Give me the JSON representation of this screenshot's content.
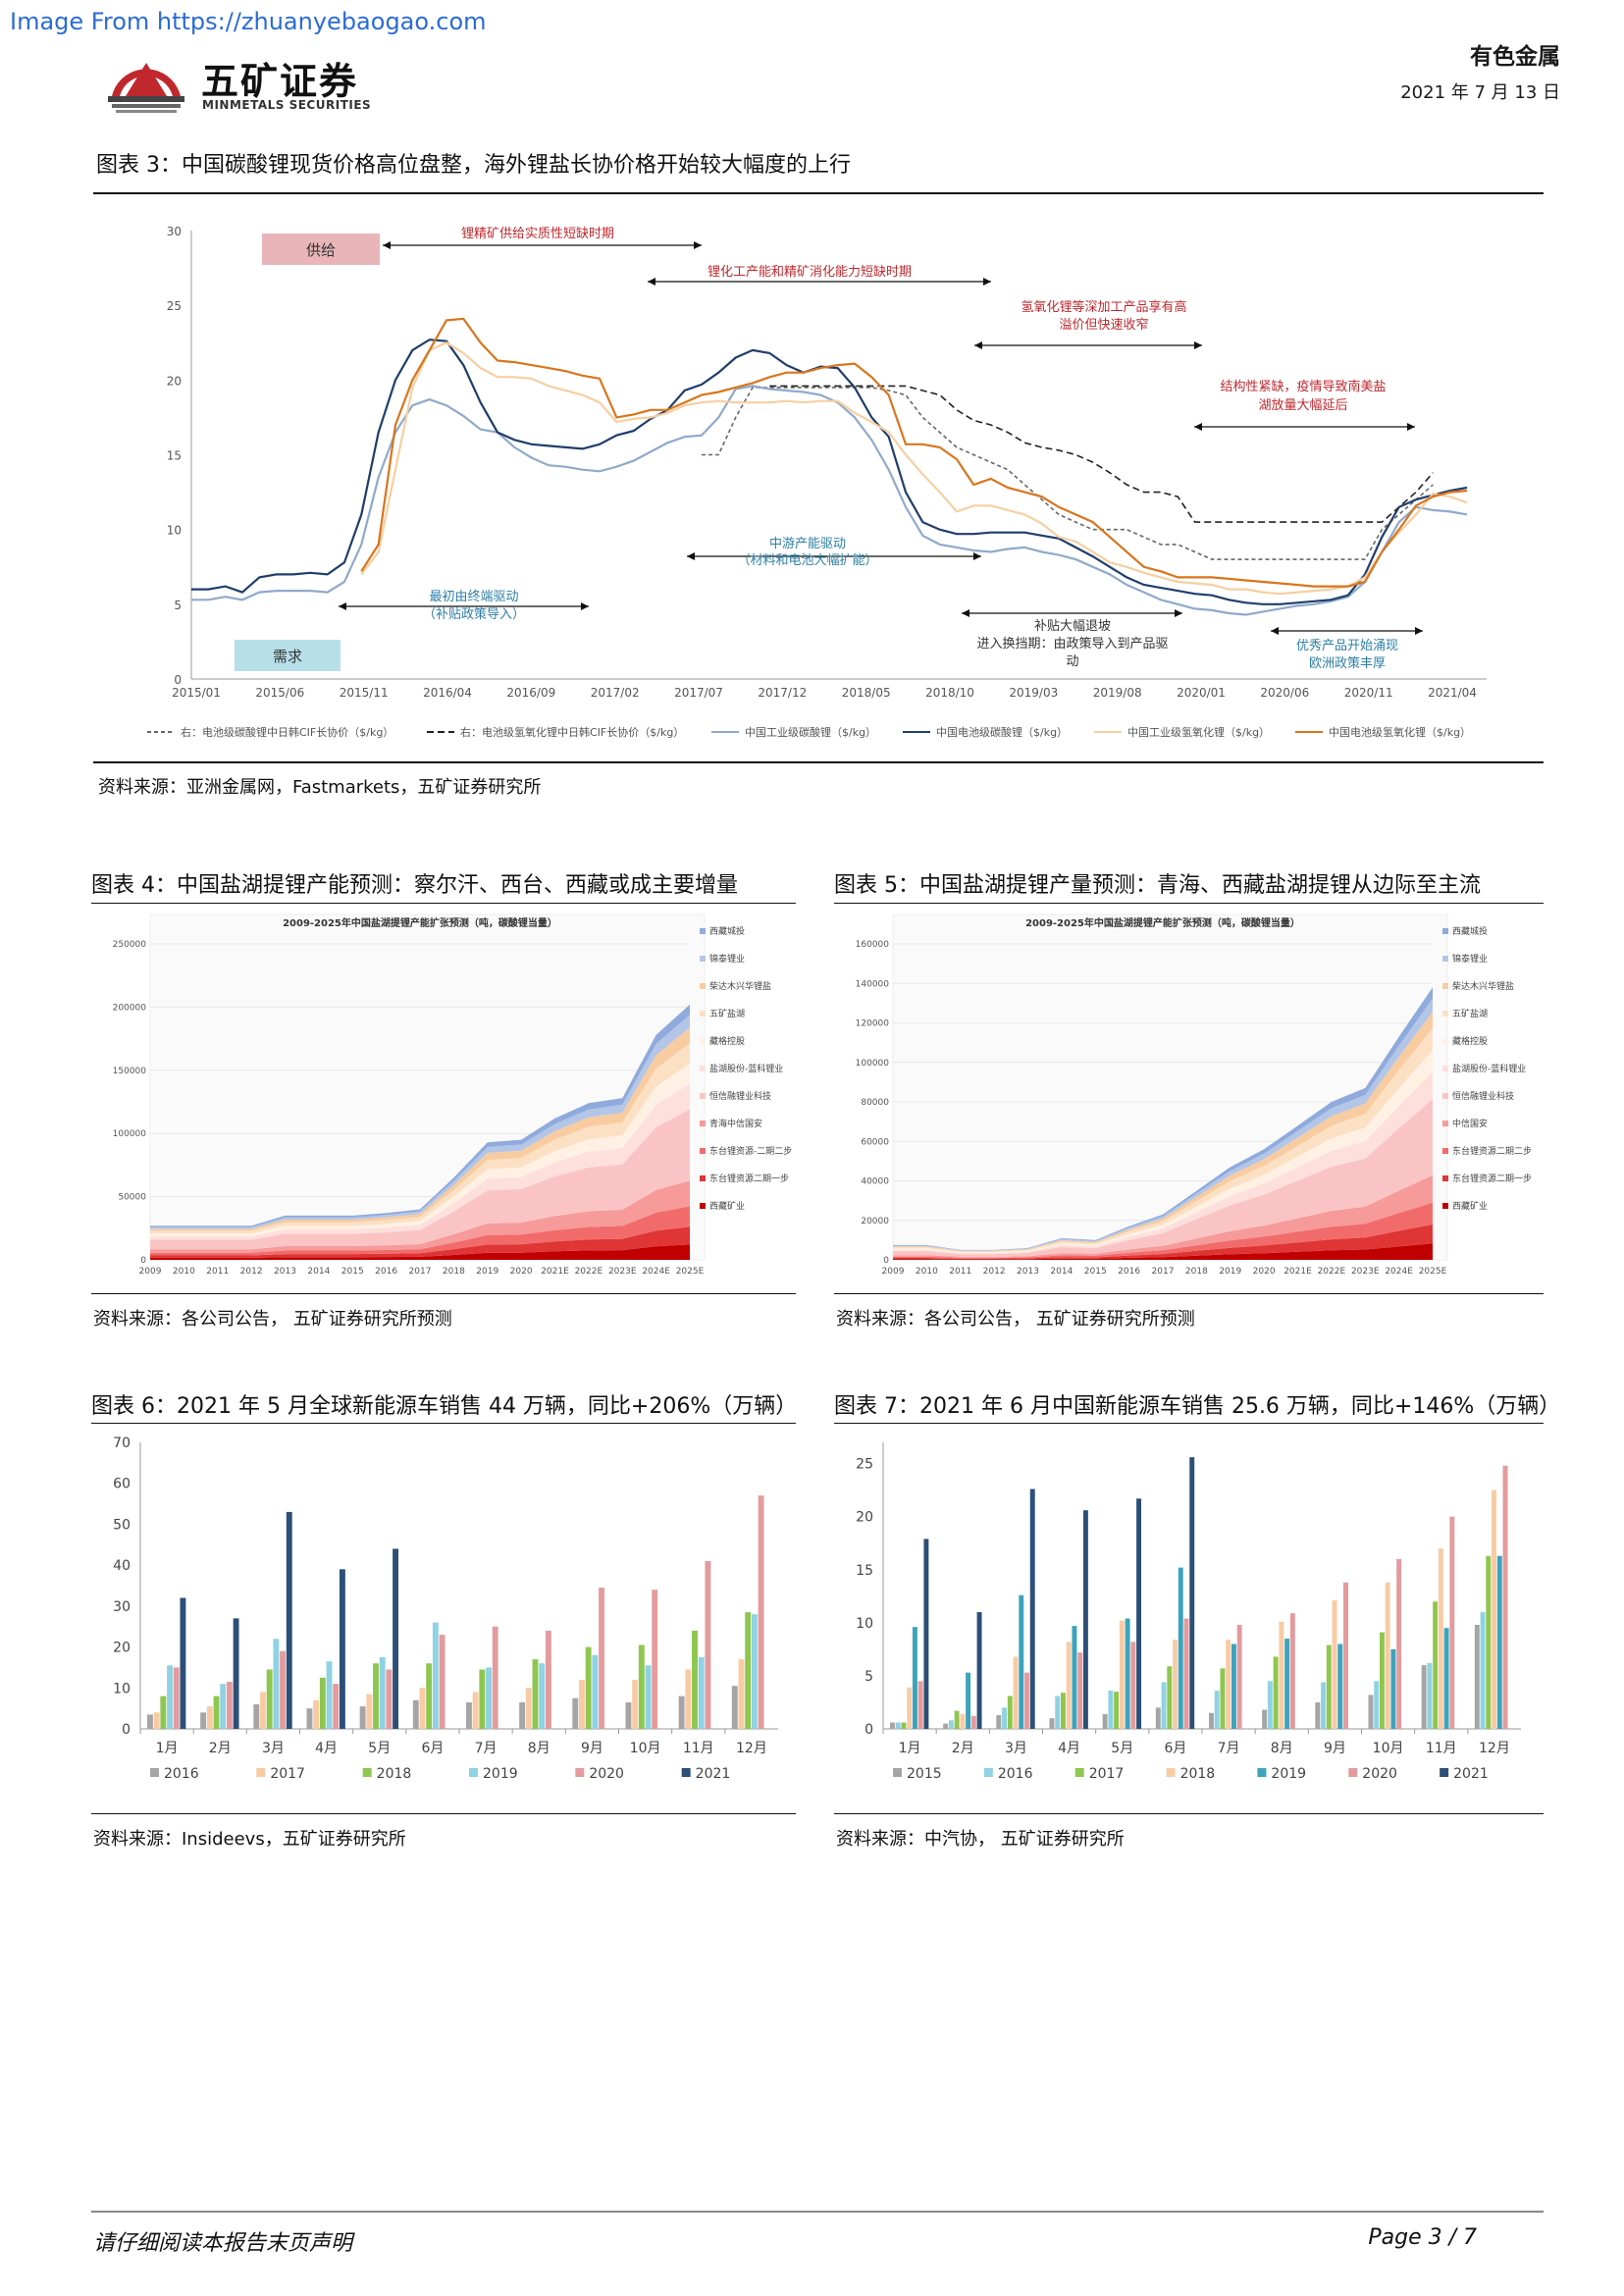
{
  "watermark": "Image From https://zhuanyebaogao.com",
  "header": {
    "brand_cn": "五矿证券",
    "brand_en": "MINMETALS SECURITIES",
    "logo_ring_text": "MINMETALS",
    "sector": "有色金属",
    "date": "2021 年 7 月 13 日"
  },
  "fig3": {
    "title": "图表 3：中国碳酸锂现货价格高位盘整，海外锂盐长协价格开始较大幅度的上行",
    "source": "资料来源：亚洲金属网，Fastmarkets，五矿证券研究所",
    "chart_data": {
      "type": "line",
      "yticks": [
        "0",
        "5",
        "10",
        "15",
        "20",
        "25",
        "30"
      ],
      "ylim": [
        0,
        30
      ],
      "xticks": [
        "2015/01",
        "2015/06",
        "2015/11",
        "2016/04",
        "2016/09",
        "2017/02",
        "2017/07",
        "2017/12",
        "2018/05",
        "2018/10",
        "2019/03",
        "2019/08",
        "2020/01",
        "2020/06",
        "2020/11",
        "2021/04"
      ],
      "annotations": {
        "supply": "供给",
        "demand": "需求",
        "a1": "锂精矿供给实质性短缺时期",
        "a2": "锂化工产能和精矿消化能力短缺时期",
        "a3_1": "氢氧化锂等深加工产品享有高",
        "a3_2": "溢价但快速收窄",
        "a4_1": "结构性紧缺，疫情导致南美盐",
        "a4_2": "湖放量大幅延后",
        "b1_1": "最初由终端驱动",
        "b1_2": "（补贴政策导入）",
        "b2_1": "中游产能驱动",
        "b2_2": "（材料和电池大幅扩能）",
        "b3_1": "补贴大幅退坡",
        "b3_2": "进入换挡期：由政策导入到产品驱",
        "b3_3": "动",
        "b4_1": "优秀产品开始涌现",
        "b4_2": "欧洲政策丰厚"
      },
      "series": [
        {
          "name": "右：电池级碳酸锂中日韩CIF长协价（$/kg）",
          "color": "#666666",
          "dash": "4,3",
          "values": [
            null,
            null,
            null,
            null,
            null,
            null,
            null,
            null,
            null,
            null,
            null,
            null,
            null,
            null,
            null,
            null,
            null,
            null,
            null,
            null,
            null,
            null,
            null,
            null,
            null,
            null,
            null,
            null,
            null,
            null,
            15,
            15,
            17.5,
            19.5,
            19.5,
            19.5,
            19.5,
            19.5,
            19.5,
            19.5,
            19.5,
            19.3,
            19,
            17.5,
            16.5,
            15.5,
            15,
            14.5,
            14,
            13,
            12,
            11,
            10.5,
            10,
            10,
            10,
            9.5,
            9,
            9,
            8.5,
            8,
            8,
            8,
            8,
            8,
            8,
            8,
            8,
            8,
            8,
            10,
            11,
            12,
            13
          ]
        },
        {
          "name": "右：电池级氢氧化锂中日韩CIF长协价（$/kg）",
          "color": "#222222",
          "dash": "7,4",
          "values": [
            null,
            null,
            null,
            null,
            null,
            null,
            null,
            null,
            null,
            null,
            null,
            null,
            null,
            null,
            null,
            null,
            null,
            null,
            null,
            null,
            null,
            null,
            null,
            null,
            null,
            null,
            null,
            null,
            null,
            null,
            null,
            null,
            null,
            null,
            19.6,
            19.6,
            19.6,
            19.6,
            19.6,
            19.6,
            19.6,
            19.6,
            19.6,
            19.3,
            19,
            18,
            17.3,
            17,
            16.5,
            15.8,
            15.5,
            15.3,
            15,
            14.5,
            13.8,
            13,
            12.5,
            12.5,
            12.2,
            10.5,
            10.5,
            10.5,
            10.5,
            10.5,
            10.5,
            10.5,
            10.5,
            10.5,
            10.5,
            10.5,
            10.5,
            11.5,
            12.5,
            13.8
          ]
        },
        {
          "name": "中国工业级碳酸锂（$/kg）",
          "color": "#8eaacb",
          "dash": "",
          "values": [
            5.3,
            5.3,
            5.5,
            5.3,
            5.8,
            5.9,
            5.9,
            5.9,
            5.8,
            6.5,
            9,
            13.5,
            16.5,
            18.3,
            18.7,
            18.3,
            17.6,
            16.7,
            16.5,
            15.5,
            14.8,
            14.3,
            14.2,
            14.0,
            13.9,
            14.2,
            14.6,
            15.2,
            15.8,
            16.2,
            16.3,
            17.5,
            19.4,
            19.6,
            19.4,
            19.3,
            19.2,
            19.0,
            18.5,
            17.5,
            16,
            14,
            11.5,
            9.6,
            9.0,
            8.8,
            8.6,
            8.5,
            8.7,
            8.8,
            8.5,
            8.3,
            8.0,
            7.5,
            7.0,
            6.3,
            5.8,
            5.3,
            5.0,
            4.7,
            4.6,
            4.4,
            4.3,
            4.5,
            4.7,
            4.9,
            5.0,
            5.2,
            5.5,
            6.5,
            8.5,
            10.5,
            11.5,
            11.3,
            11.2,
            11.0
          ]
        },
        {
          "name": "中国电池级碳酸锂（$/kg）",
          "color": "#1f3e6b",
          "dash": "",
          "values": [
            6.0,
            6.0,
            6.2,
            5.8,
            6.8,
            7.0,
            7.0,
            7.1,
            7.0,
            7.8,
            11,
            16.5,
            20,
            22,
            22.7,
            22.6,
            21,
            18.5,
            16.5,
            16,
            15.7,
            15.6,
            15.5,
            15.4,
            15.7,
            16.3,
            16.6,
            17.4,
            18,
            19.3,
            19.7,
            20.5,
            21.5,
            22.0,
            21.8,
            21.0,
            20.5,
            20.9,
            20.8,
            19.5,
            17.5,
            16.2,
            12.5,
            10.5,
            10.0,
            9.7,
            9.7,
            9.8,
            9.8,
            9.8,
            9.6,
            9.4,
            8.8,
            8.2,
            7.5,
            6.8,
            6.3,
            6.1,
            5.9,
            5.7,
            5.6,
            5.3,
            5.1,
            5.0,
            5.0,
            5.1,
            5.2,
            5.3,
            5.6,
            7.0,
            9.5,
            11.5,
            12.0,
            12.3,
            12.6,
            12.8
          ]
        },
        {
          "name": "中国工业级氢氧化锂（$/kg）",
          "color": "#f6cfa2",
          "dash": "",
          "values": [
            null,
            null,
            null,
            null,
            null,
            null,
            null,
            null,
            null,
            null,
            7,
            8.5,
            14,
            19.5,
            22,
            22.5,
            21.8,
            20.8,
            20.2,
            20.2,
            20.1,
            19.6,
            19.3,
            19.0,
            18.5,
            17.2,
            17.4,
            17.5,
            17.8,
            18.3,
            18.5,
            18.6,
            18.5,
            18.5,
            18.5,
            18.6,
            18.5,
            18.6,
            18.6,
            17.8,
            17.2,
            16.5,
            15,
            13.7,
            12.5,
            11.2,
            11.6,
            11.6,
            11.3,
            11.0,
            10.4,
            9.5,
            9.2,
            8.5,
            7.8,
            7.5,
            7.1,
            6.8,
            6.5,
            6.4,
            6.3,
            6.0,
            6.0,
            5.8,
            5.7,
            5.8,
            5.9,
            6.0,
            6.2,
            6.8,
            8.5,
            9.8,
            11.0,
            12.4,
            12.2,
            11.8
          ]
        },
        {
          "name": "中国电池级氢氧化锂（$/kg）",
          "color": "#d9751c",
          "dash": "",
          "values": [
            null,
            null,
            null,
            null,
            null,
            null,
            null,
            null,
            null,
            null,
            7.2,
            9,
            17,
            20,
            22,
            24.0,
            24.1,
            22.5,
            21.3,
            21.2,
            21.0,
            20.8,
            20.6,
            20.3,
            20.1,
            17.5,
            17.7,
            18.0,
            18.0,
            18.5,
            19.0,
            19.2,
            19.5,
            19.8,
            20.2,
            20.5,
            20.5,
            20.8,
            21.0,
            21.1,
            20.2,
            19.0,
            15.7,
            15.7,
            15.5,
            14.7,
            13.0,
            13.4,
            12.8,
            12.5,
            12.2,
            11.5,
            11.0,
            10.5,
            9.5,
            8.5,
            7.5,
            7.2,
            6.8,
            6.8,
            6.8,
            6.7,
            6.6,
            6.5,
            6.4,
            6.3,
            6.2,
            6.2,
            6.2,
            6.5,
            8.5,
            10,
            11.6,
            12.2,
            12.5,
            12.6
          ]
        }
      ]
    }
  },
  "fig4": {
    "title": "图表 4：中国盐湖提锂产能预测：察尔汗、西台、西藏或成主要增量",
    "source": "资料来源：各公司公告，  五矿证券研究所预测",
    "chart_data": {
      "type": "area",
      "title": "2009-2025年中国盐湖提锂产能扩张预测（吨，碳酸锂当量）",
      "categories": [
        "2009",
        "2010",
        "2011",
        "2012",
        "2013",
        "2014",
        "2015",
        "2016",
        "2017",
        "2018",
        "2019",
        "2020",
        "2021E",
        "2022E",
        "2023E",
        "2024E",
        "2025E"
      ],
      "ylim": [
        0,
        250000
      ],
      "yticks": [
        "0",
        "50000",
        "100000",
        "150000",
        "200000",
        "250000"
      ],
      "legend": [
        "西藏城投",
        "锦泰锂业",
        "柴达木兴华锂盐",
        "五矿盐湖",
        "藏格控股",
        "盐湖股份-蓝科锂业",
        "恒信融锂业科技",
        "青海中信国安",
        "东台锂资源-二期二步",
        "东台锂资源二期一步",
        "西藏矿业"
      ],
      "totals": [
        27000,
        27000,
        27000,
        27000,
        35000,
        35000,
        35000,
        37000,
        40000,
        65000,
        93000,
        95000,
        112000,
        124000,
        128000,
        178000,
        202000
      ]
    }
  },
  "fig5": {
    "title": "图表 5：中国盐湖提锂产量预测：青海、西藏盐湖提锂从边际至主流",
    "source": "资料来源：各公司公告，  五矿证券研究所预测",
    "chart_data": {
      "type": "area",
      "title": "2009-2025年中国盐湖提锂产能扩张预测（吨，碳酸锂当量）",
      "categories": [
        "2009",
        "2010",
        "2011",
        "2012",
        "2013",
        "2014",
        "2015",
        "2016",
        "2017",
        "2018",
        "2019",
        "2020",
        "2021E",
        "2022E",
        "2023E",
        "2024E",
        "2025E"
      ],
      "ylim": [
        0,
        160000
      ],
      "yticks": [
        "0",
        "20000",
        "40000",
        "60000",
        "80000",
        "100000",
        "120000",
        "140000",
        "160000"
      ],
      "legend": [
        "西藏城投",
        "锦泰锂业",
        "柴达木兴华锂盐",
        "五矿盐湖",
        "藏格控股",
        "盐湖股份-蓝科锂业",
        "恒信融锂业科技",
        "中信国安",
        "东台锂资源二期二步",
        "东台锂资源二期一步",
        "西藏矿业"
      ],
      "totals": [
        7500,
        7500,
        5000,
        5000,
        6000,
        11000,
        10000,
        17000,
        23000,
        35000,
        47000,
        56000,
        68000,
        80000,
        87000,
        113000,
        138000
      ]
    }
  },
  "fig6": {
    "title": "图表 6：2021 年 5 月全球新能源车销售 44 万辆，同比+206%（万辆）",
    "source": "资料来源：Insideevs，五矿证券研究所",
    "chart_data": {
      "type": "bar",
      "categories": [
        "1月",
        "2月",
        "3月",
        "4月",
        "5月",
        "6月",
        "7月",
        "8月",
        "9月",
        "10月",
        "11月",
        "12月"
      ],
      "ylim": [
        0,
        70
      ],
      "yticks": [
        "0",
        "10",
        "20",
        "30",
        "40",
        "50",
        "60",
        "70"
      ],
      "series": [
        {
          "name": "2016",
          "color": "#a5a5a5",
          "values": [
            3.5,
            4,
            6,
            5,
            5.5,
            7,
            6.5,
            6.5,
            7.5,
            6.5,
            8,
            10.5
          ]
        },
        {
          "name": "2017",
          "color": "#f8cba5",
          "values": [
            4,
            5.5,
            9,
            7,
            8.5,
            10,
            9,
            10,
            12,
            12,
            14.5,
            17
          ]
        },
        {
          "name": "2018",
          "color": "#8fc64f",
          "values": [
            8,
            8,
            14.5,
            12.5,
            16,
            16,
            14.5,
            17,
            20,
            20.5,
            24,
            28.5
          ]
        },
        {
          "name": "2019",
          "color": "#8fd2e4",
          "values": [
            15.5,
            11,
            22,
            16.5,
            17.5,
            26,
            15,
            16,
            18,
            15.5,
            17.5,
            28
          ]
        },
        {
          "name": "2020",
          "color": "#e39b9d",
          "values": [
            15,
            11.5,
            19,
            11,
            14.5,
            23,
            25,
            24,
            34.5,
            34,
            41,
            57
          ]
        },
        {
          "name": "2021",
          "color": "#2c4f77",
          "values": [
            32,
            27,
            53,
            39,
            44,
            null,
            null,
            null,
            null,
            null,
            null,
            null
          ]
        }
      ]
    }
  },
  "fig7": {
    "title": "图表 7：2021 年 6 月中国新能源车销售 25.6 万辆，同比+146%（万辆）",
    "source": "资料来源：中汽协，  五矿证券研究所",
    "chart_data": {
      "type": "bar",
      "categories": [
        "1月",
        "2月",
        "3月",
        "4月",
        "5月",
        "6月",
        "7月",
        "8月",
        "9月",
        "10月",
        "11月",
        "12月"
      ],
      "ylim": [
        0,
        27
      ],
      "yticks": [
        "0",
        "5",
        "10",
        "15",
        "20",
        "25"
      ],
      "series": [
        {
          "name": "2015",
          "color": "#a5a5a5",
          "values": [
            0.6,
            0.5,
            1.3,
            1.0,
            1.4,
            2.0,
            1.5,
            1.8,
            2.5,
            3.2,
            6.0,
            9.8
          ]
        },
        {
          "name": "2016",
          "color": "#8fd2e4",
          "values": [
            0.6,
            0.8,
            2.0,
            3.1,
            3.6,
            4.4,
            3.6,
            4.5,
            4.4,
            4.5,
            6.2,
            11.0
          ]
        },
        {
          "name": "2017",
          "color": "#8fc64f",
          "values": [
            0.6,
            1.7,
            3.1,
            3.4,
            3.5,
            5.9,
            5.7,
            6.8,
            7.9,
            9.1,
            12.0,
            16.3
          ]
        },
        {
          "name": "2018",
          "color": "#f8cba5",
          "values": [
            3.9,
            1.4,
            6.8,
            8.2,
            10.2,
            8.4,
            8.4,
            10.1,
            12.1,
            13.8,
            17.0,
            22.5
          ]
        },
        {
          "name": "2019",
          "color": "#3da3bc",
          "values": [
            9.6,
            5.3,
            12.6,
            9.7,
            10.4,
            15.2,
            8.0,
            8.5,
            8.0,
            7.5,
            9.5,
            16.3
          ]
        },
        {
          "name": "2020",
          "color": "#e39b9d",
          "values": [
            4.5,
            1.2,
            5.3,
            7.2,
            8.2,
            10.4,
            9.8,
            10.9,
            13.8,
            16.0,
            20.0,
            24.8
          ]
        },
        {
          "name": "2021",
          "color": "#2c4f77",
          "values": [
            17.9,
            11.0,
            22.6,
            20.6,
            21.7,
            25.6,
            null,
            null,
            null,
            null,
            null,
            null
          ]
        }
      ]
    }
  },
  "footer": {
    "disclaimer": "请仔细阅读本报告末页声明",
    "page": "Page   3 / 7"
  }
}
